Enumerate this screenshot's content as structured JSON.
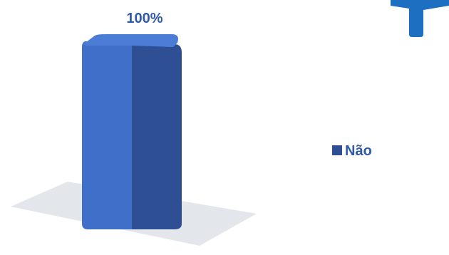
{
  "chart_data": {
    "type": "bar",
    "categories": [
      ""
    ],
    "series": [
      {
        "name": "Não",
        "values": [
          100
        ]
      }
    ],
    "data_labels": [
      "100%"
    ],
    "ylim": [
      0,
      100
    ],
    "legend": {
      "position": "right",
      "entries": [
        "Não"
      ]
    },
    "grid": false
  },
  "colors": {
    "bar_front": "#3F6FC9",
    "bar_side": "#2E4F93",
    "bar_top": "#4C7DD6",
    "floor": "#E3E6EA",
    "label": "#2E5AA8",
    "accent_corner": "#1C6FC1"
  }
}
